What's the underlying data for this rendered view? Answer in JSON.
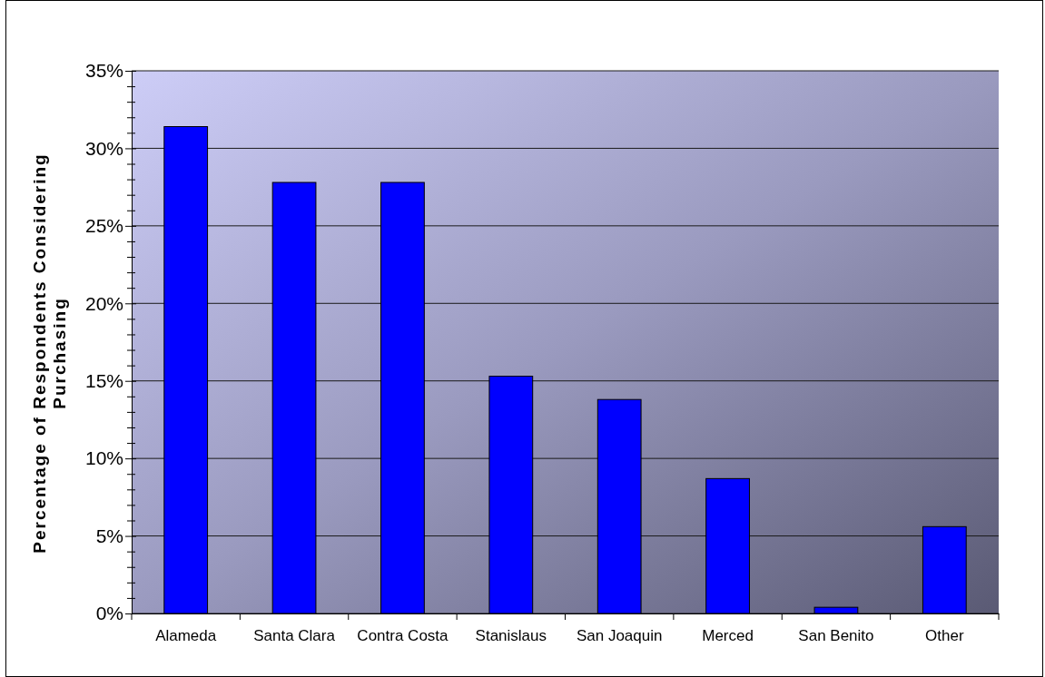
{
  "chart_data": {
    "type": "bar",
    "ylabel": "Percentage of Respondents Considering\nPurchasing",
    "categories": [
      "Alameda",
      "Santa Clara",
      "Contra Costa",
      "Stanislaus",
      "San Joaquin",
      "Merced",
      "San Benito",
      "Other"
    ],
    "values": [
      31.4,
      27.8,
      27.8,
      15.3,
      13.8,
      8.7,
      0.4,
      5.6
    ],
    "color": "#0000ff",
    "ylim": [
      0,
      35
    ],
    "yticks": [
      {
        "value": 0,
        "label": "0%"
      },
      {
        "value": 1,
        "label": null
      },
      {
        "value": 2,
        "label": null
      },
      {
        "value": 3,
        "label": null
      },
      {
        "value": 4,
        "label": null
      },
      {
        "value": 5,
        "label": "5%"
      },
      {
        "value": 6,
        "label": null
      },
      {
        "value": 7,
        "label": null
      },
      {
        "value": 8,
        "label": null
      },
      {
        "value": 9,
        "label": null
      },
      {
        "value": 10,
        "label": "10%"
      },
      {
        "value": 11,
        "label": null
      },
      {
        "value": 12,
        "label": null
      },
      {
        "value": 13,
        "label": null
      },
      {
        "value": 14,
        "label": null
      },
      {
        "value": 15,
        "label": "15%"
      },
      {
        "value": 16,
        "label": null
      },
      {
        "value": 17,
        "label": null
      },
      {
        "value": 18,
        "label": null
      },
      {
        "value": 19,
        "label": null
      },
      {
        "value": 20,
        "label": "20%"
      },
      {
        "value": 21,
        "label": null
      },
      {
        "value": 22,
        "label": null
      },
      {
        "value": 23,
        "label": null
      },
      {
        "value": 24,
        "label": null
      },
      {
        "value": 25,
        "label": "25%"
      },
      {
        "value": 26,
        "label": null
      },
      {
        "value": 27,
        "label": null
      },
      {
        "value": 28,
        "label": null
      },
      {
        "value": 29,
        "label": null
      },
      {
        "value": 30,
        "label": "30%"
      },
      {
        "value": 31,
        "label": null
      },
      {
        "value": 32,
        "label": null
      },
      {
        "value": 33,
        "label": null
      },
      {
        "value": 34,
        "label": null
      },
      {
        "value": 35,
        "label": "35%"
      }
    ],
    "grid": "y"
  }
}
